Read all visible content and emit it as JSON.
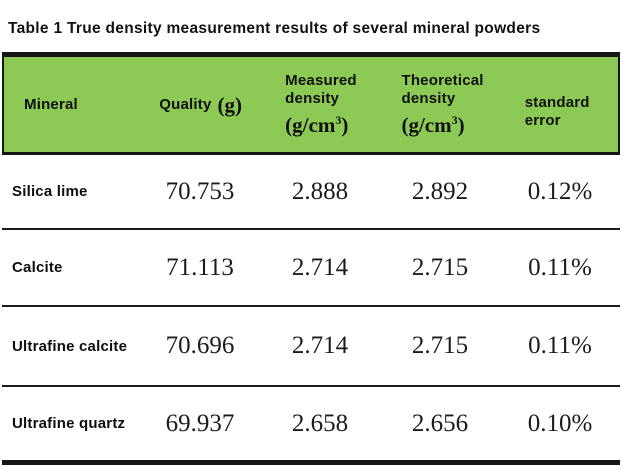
{
  "title": "Table 1 True density measurement results of several mineral powders",
  "colors": {
    "header_green": "#8dca55",
    "border_black": "#161616",
    "background": "#ffffff",
    "text": "#121212"
  },
  "table": {
    "header": {
      "mineral": "Mineral",
      "quality": {
        "label": "Quality",
        "unit": "(g)"
      },
      "measured": {
        "line1": "Measured",
        "line2": "density",
        "unit_prefix": "(g/cm",
        "unit_sup": "3",
        "unit_suffix": ")"
      },
      "theoretical": {
        "line1": "Theoretical",
        "line2": "density",
        "unit_prefix": "(g/cm",
        "unit_sup": "3",
        "unit_suffix": ")"
      },
      "std_error": {
        "line1": "standard",
        "line2": "error"
      }
    },
    "rows": [
      {
        "mineral": "Silica lime",
        "quality": "70.753",
        "measured": "2.888",
        "theoretical": "2.892",
        "std_error": "0.12%"
      },
      {
        "mineral": "Calcite",
        "quality": "71.113",
        "measured": "2.714",
        "theoretical": "2.715",
        "std_error": "0.11%"
      },
      {
        "mineral": "Ultrafine calcite",
        "quality": "70.696",
        "measured": "2.714",
        "theoretical": "2.715",
        "std_error": "0.11%"
      },
      {
        "mineral": "Ultrafine quartz",
        "quality": "69.937",
        "measured": "2.658",
        "theoretical": "2.656",
        "std_error": "0.10%"
      }
    ]
  },
  "chart_data": {
    "type": "table",
    "title": "Table 1 True density measurement results of several mineral powders",
    "columns": [
      "Mineral",
      "Quality (g)",
      "Measured density (g/cm³)",
      "Theoretical density (g/cm³)",
      "standard error"
    ],
    "rows": [
      [
        "Silica lime",
        70.753,
        2.888,
        2.892,
        "0.12%"
      ],
      [
        "Calcite",
        71.113,
        2.714,
        2.715,
        "0.11%"
      ],
      [
        "Ultrafine calcite",
        70.696,
        2.714,
        2.715,
        "0.11%"
      ],
      [
        "Ultrafine quartz",
        69.937,
        2.658,
        2.656,
        "0.10%"
      ]
    ],
    "layout": {
      "header_background": "#8dca55",
      "header_text_color": "#101010",
      "grid": "horizontal-rules-only",
      "thick_rules": [
        "top-of-header",
        "bottom-of-table"
      ],
      "number_font": "serif",
      "label_font": "bold sans-serif"
    }
  }
}
